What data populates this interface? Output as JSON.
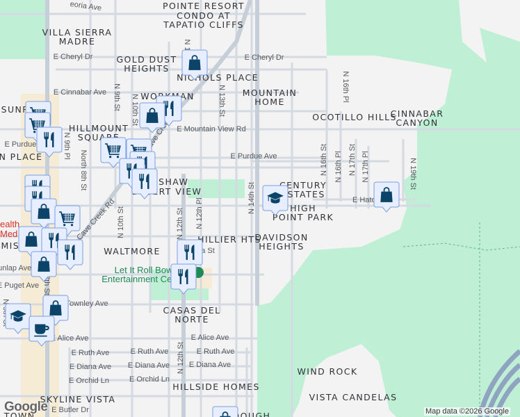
{
  "map": {
    "neighborhoods": {
      "pointe_resort_1": "POINTE RESORT",
      "pointe_resort_2": "CONDO AT",
      "pointe_resort_3": "TAPATIO CLIFFS",
      "villa_sierra_1": "VILLA SIERRA",
      "villa_sierra_2": "MADRE",
      "gold_dust_1": "GOLD DUST",
      "gold_dust_2": "HEIGHTS",
      "nichols_place": "NICHOLS PLACE",
      "workman": "WORKMAN",
      "mountain_home_1": "MOUNTAIN",
      "mountain_home_2": "HOME",
      "ocotillo_hills": "OCOTILLO HILLS",
      "cinnabar_canyon_1": "CINNABAR",
      "cinnabar_canyon_2": "CANYON",
      "sunr": "SUNR",
      "hillmount_1": "HILLMOUNT",
      "hillmount_2": "SQUARE",
      "n_place": "N PLACE",
      "upshaw_1": "UPSHAW",
      "upshaw_2": "DESERT VIEW",
      "century_1": "CENTURY",
      "century_2": "ESTATES",
      "high_point_1": "HIGH",
      "high_point_2": "POINT PARK",
      "davidson_1": "DAVIDSON",
      "davidson_2": "HEIGHTS",
      "hillier_hts": "HILLIER HTS",
      "waltmore": "WALTMORE",
      "missi": "MISSI",
      "casas_1": "CASAS DEL",
      "casas_2": "NORTE",
      "hillside_homes": "HILLSIDE HOMES",
      "skyline_vista": "SKYLINE VISTA",
      "wind_rock": "WIND ROCK",
      "vista_candelas": "VISTA CANDELAS",
      "dough": "DOUGH",
      "h_town": "H TOWN"
    },
    "streets": {
      "peoria": "eoria Ave",
      "cheryl_w": "E Cheryl Dr",
      "cheryl_e": "E Cheryl Dr",
      "cinnabar": "E Cinnabar Ave",
      "n9th": "N 9th St",
      "n10th_n": "N 10th St",
      "n13th": "N 13th St",
      "north8th": "North 8th St",
      "n_1": "N 1",
      "n9th_pl": "N 9th Pl",
      "mountain_view": "E Mountain View Rd",
      "purdue_e": "E Purdue Ave",
      "purdue_w": "E Purdue Ave",
      "cave_creek_n": "Cave Creek",
      "cave_creek_s": "Cave Creek Rd",
      "n16th_pl_n": "N 16th Pl",
      "n16th_st": "N 16th St",
      "n16th_pl": "N 16th Pl",
      "n17th_st": "N 17th St",
      "n17th_pl": "N 17th Pl",
      "n19th_st": "N 19th St",
      "hatcher": "E Hatcher Rd",
      "n14th": "N 14th St",
      "n10th_s": "N 10th St",
      "n12th_n": "N 12th St",
      "n12th_pl": "N 12th Pl",
      "dunlap": "E Dunlap Ave",
      "puget": "E Puget Ave",
      "n7th": "N 7th St",
      "townley": "E Townley Ave",
      "n5th": "N 5th St",
      "alice_w": "E Alice Ave",
      "alice_e": "E Alice Ave",
      "ruth_1": "E Ruth Ave",
      "ruth_2": "E Ruth Ave",
      "ruth_3": "E Ruth Ave",
      "diana_1": "E Diana Ave",
      "diana_2": "E Diana Ave",
      "diana_3": "E Diana Ave",
      "orchid_1": "E Orchid Ln",
      "orchid_2": "E Orchid Ln",
      "n12th_s": "N 12th St",
      "butler": "E Butler Dr",
      "vista_st": "a St"
    },
    "pois": {
      "health_1": "ealth",
      "health_2": "Med",
      "bowling_1": "Let It Roll Bowl",
      "bowling_2": "Entertainment Center"
    },
    "markers": [
      {
        "type": "shopping-bag"
      },
      {
        "type": "restaurant"
      },
      {
        "type": "shopping-bag"
      },
      {
        "type": "shopping-cart"
      },
      {
        "type": "shopping-cart"
      },
      {
        "type": "restaurant"
      },
      {
        "type": "shopping-cart"
      },
      {
        "type": "shopping-cart"
      },
      {
        "type": "restaurant"
      },
      {
        "type": "restaurant"
      },
      {
        "type": "restaurant"
      },
      {
        "type": "restaurant"
      },
      {
        "type": "restaurant"
      },
      {
        "type": "shopping-bag"
      },
      {
        "type": "shopping-cart"
      },
      {
        "type": "shopping-bag"
      },
      {
        "type": "restaurant"
      },
      {
        "type": "restaurant"
      },
      {
        "type": "shopping-bag"
      },
      {
        "type": "shopping-bag"
      },
      {
        "type": "school"
      },
      {
        "type": "coffee"
      },
      {
        "type": "restaurant"
      },
      {
        "type": "restaurant"
      },
      {
        "type": "school"
      },
      {
        "type": "shopping-bag"
      },
      {
        "type": "shopping-bag"
      }
    ],
    "colors": {
      "background": "#f4f3f3",
      "park": "#bff0d5",
      "commercial": "#f6ecd6",
      "road": "#d4dae2",
      "freeway": "#8fa4c0",
      "marker_fill": "#e6eeff",
      "marker_icon": "#0b4468"
    }
  },
  "footer": {
    "logo": "Google",
    "attribution": "Map data ©2026 Google"
  }
}
